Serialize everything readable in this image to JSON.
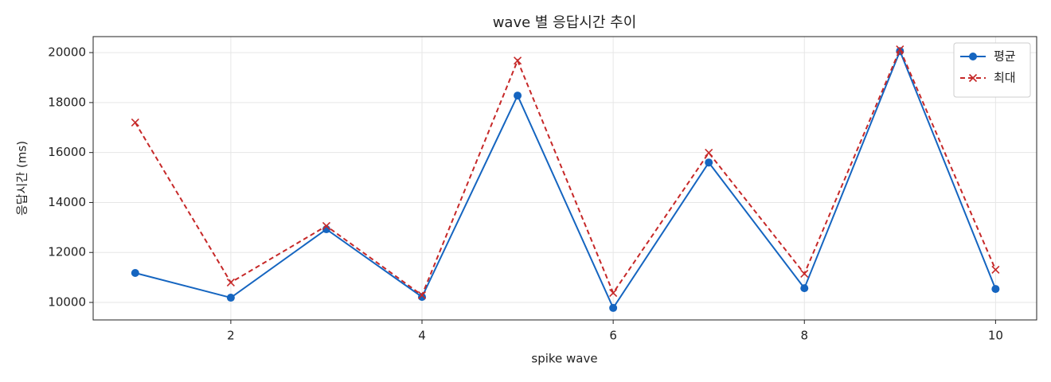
{
  "chart_data": {
    "type": "line",
    "title": "wave 별 응답시간 추이",
    "x_label": "spike wave",
    "y_label": "응답시간 (ms)",
    "x": [
      1,
      2,
      3,
      4,
      5,
      6,
      7,
      8,
      9,
      10
    ],
    "series": [
      {
        "name": "평균",
        "color": "#1565c0",
        "marker": "circle",
        "dash": false,
        "values": [
          11180,
          10190,
          12930,
          10220,
          18280,
          9780,
          15600,
          10570,
          20060,
          10540
        ]
      },
      {
        "name": "최대",
        "color": "#c62828",
        "marker": "x",
        "dash": true,
        "values": [
          17200,
          10800,
          13060,
          10290,
          19680,
          10380,
          15990,
          11150,
          20130,
          11310
        ]
      }
    ],
    "xlim": [
      0.56,
      10.43
    ],
    "xticks": [
      2,
      4,
      6,
      8,
      10
    ],
    "ylim": [
      9300,
      20640
    ],
    "yticks": [
      10000,
      12000,
      14000,
      16000,
      18000,
      20000
    ],
    "grid": true,
    "legend": "upper right"
  }
}
